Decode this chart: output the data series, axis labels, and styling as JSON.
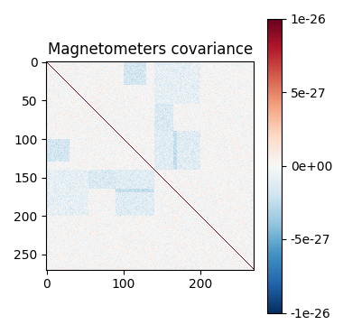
{
  "title": "Magnetometers covariance",
  "vmin": -1e-26,
  "vmax": 1e-26,
  "colormap": "RdBu_r",
  "figsize": [
    3.8,
    3.7
  ],
  "dpi": 100,
  "xticks": [
    0,
    100,
    200
  ],
  "yticks": [
    0,
    50,
    100,
    150,
    200,
    250
  ],
  "colorbar_ticks": [
    1e-26,
    5e-27,
    0.0,
    -5e-27,
    -1e-26
  ],
  "colorbar_ticklabels": [
    "1e-26",
    "5e-27",
    "0e+00",
    "-5e-27",
    "-1e-26"
  ],
  "n": 270,
  "seed": 7,
  "num_sensors": 9,
  "diag_value": 1e-26,
  "signal_scale": 3e-27,
  "noise_scale": 5e-28,
  "neg_scale": 4e-27
}
